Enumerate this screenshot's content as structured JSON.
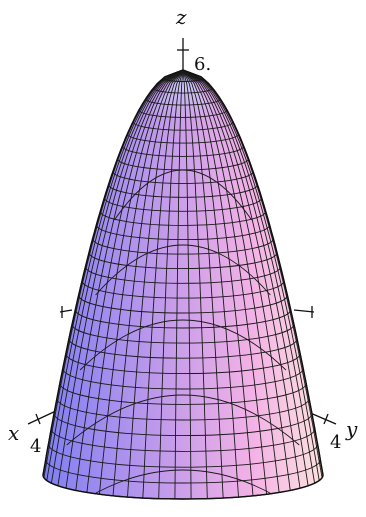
{
  "axes": {
    "x_label": "x",
    "y_label": "y",
    "z_label": "z",
    "z_tick": "6.",
    "x_tick": "4",
    "y_tick": "4"
  },
  "surface": {
    "shape": "paraboloid",
    "color_left": "#7f7ff2",
    "color_mid": "#d9a3ea",
    "color_right": "#ffdfe0",
    "mesh_color": "#1a1a1a"
  }
}
